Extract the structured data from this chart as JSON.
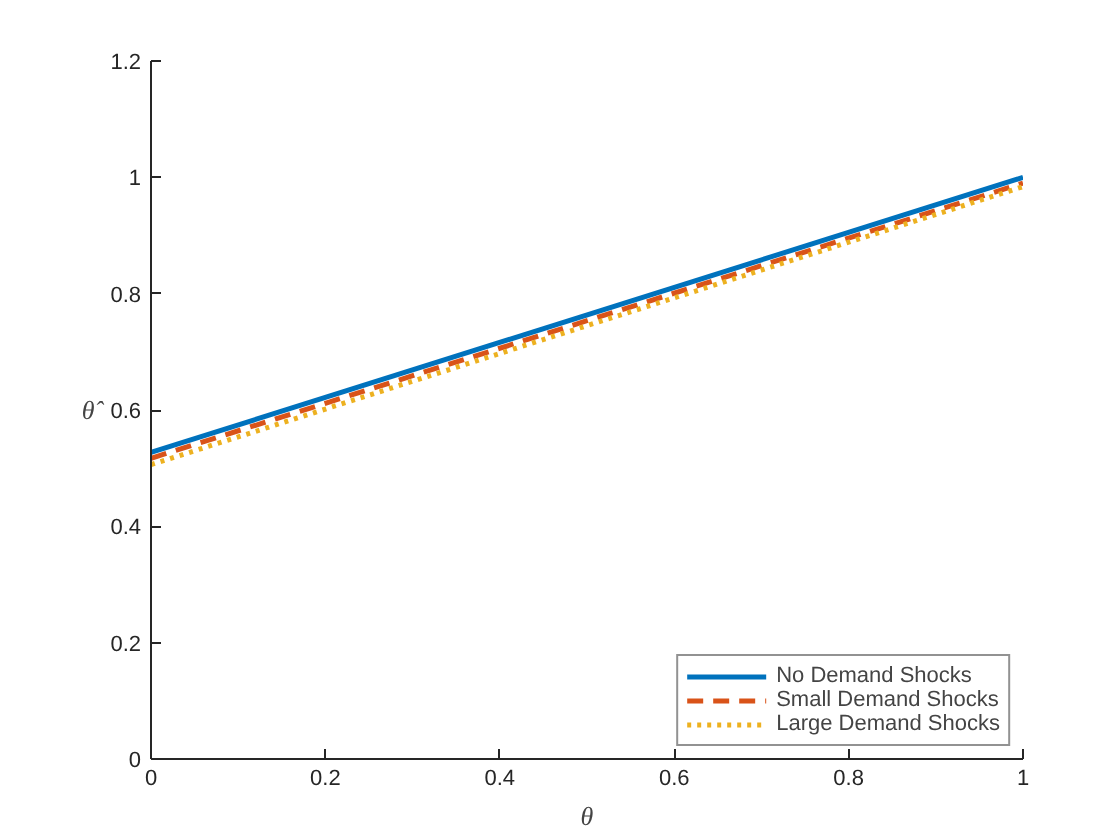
{
  "chart_data": {
    "type": "line",
    "xlabel": "θ",
    "ylabel": "θ̂",
    "x": [
      0,
      1
    ],
    "xlim": [
      0,
      1
    ],
    "ylim": [
      0,
      1.2
    ],
    "xticks": [
      0,
      0.2,
      0.4,
      0.6,
      0.8,
      1
    ],
    "yticks": [
      0,
      0.2,
      0.4,
      0.6,
      0.8,
      1,
      1.2
    ],
    "series": [
      {
        "name": "No Demand Shocks",
        "color": "#0072bd",
        "values": [
          0.527,
          1.0
        ],
        "line_style": "solid"
      },
      {
        "name": "Small Demand Shocks",
        "color": "#d95319",
        "values": [
          0.517,
          0.99
        ],
        "line_style": "dashed"
      },
      {
        "name": "Large Demand Shocks",
        "color": "#edb120",
        "values": [
          0.506,
          0.984
        ],
        "line_style": "dotted"
      }
    ],
    "legend": "bottom right",
    "grid": false
  }
}
